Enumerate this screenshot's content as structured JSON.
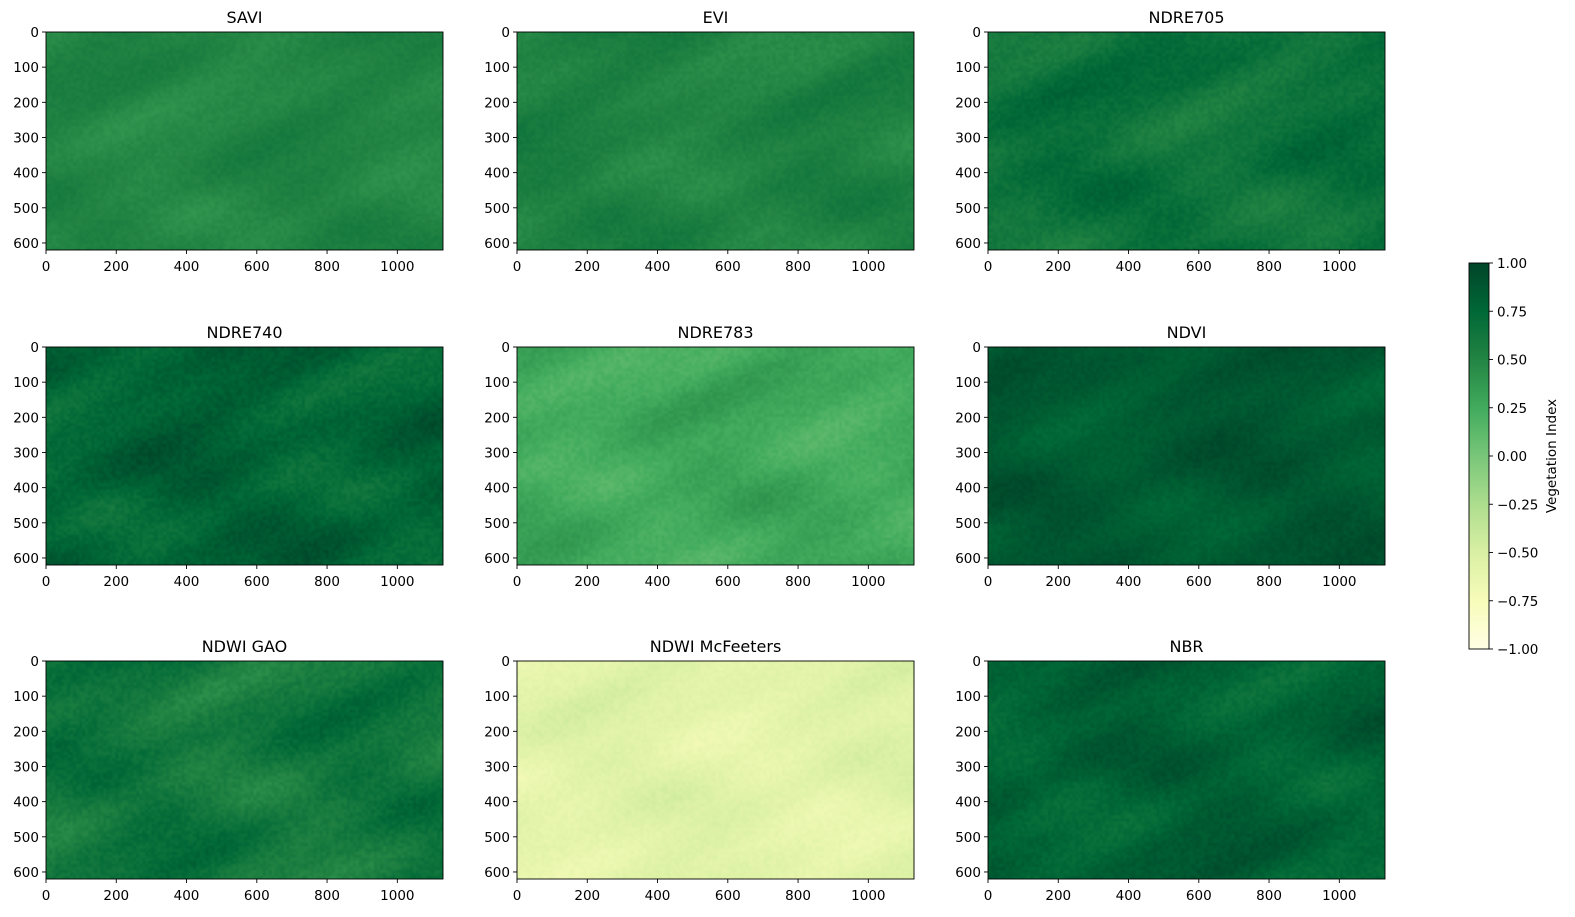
{
  "chart_data": {
    "type": "heatmap",
    "figure": "3x3 grid of raster maps sharing one colorbar",
    "colormap": "YlGn",
    "xlim": [
      0,
      1130
    ],
    "ylim": [
      620,
      0
    ],
    "x_ticks": [
      0,
      200,
      400,
      600,
      800,
      1000
    ],
    "y_ticks": [
      0,
      100,
      200,
      300,
      400,
      500,
      600
    ],
    "panels": [
      {
        "title": "SAVI",
        "mean": 0.5,
        "texture": 0.08
      },
      {
        "title": "EVI",
        "mean": 0.52,
        "texture": 0.09
      },
      {
        "title": "NDRE705",
        "mean": 0.66,
        "texture": 0.12
      },
      {
        "title": "NDRE740",
        "mean": 0.78,
        "texture": 0.14
      },
      {
        "title": "NDRE783",
        "mean": 0.26,
        "texture": 0.1
      },
      {
        "title": "NDVI",
        "mean": 0.86,
        "texture": 0.1
      },
      {
        "title": "NDWI GAO",
        "mean": 0.62,
        "texture": 0.14
      },
      {
        "title": "NDWI McFeeters",
        "mean": -0.58,
        "texture": 0.09
      },
      {
        "title": "NBR",
        "mean": 0.8,
        "texture": 0.12
      }
    ],
    "colorbar": {
      "label": "Vegetation Index",
      "range": [
        -1.0,
        1.0
      ],
      "ticks": [
        1.0,
        0.75,
        0.5,
        0.25,
        0.0,
        -0.25,
        -0.5,
        -0.75,
        -1.0
      ],
      "tick_labels": [
        "1.00",
        "0.75",
        "0.50",
        "0.25",
        "0.00",
        "−0.25",
        "−0.50",
        "−0.75",
        "−1.00"
      ]
    }
  }
}
